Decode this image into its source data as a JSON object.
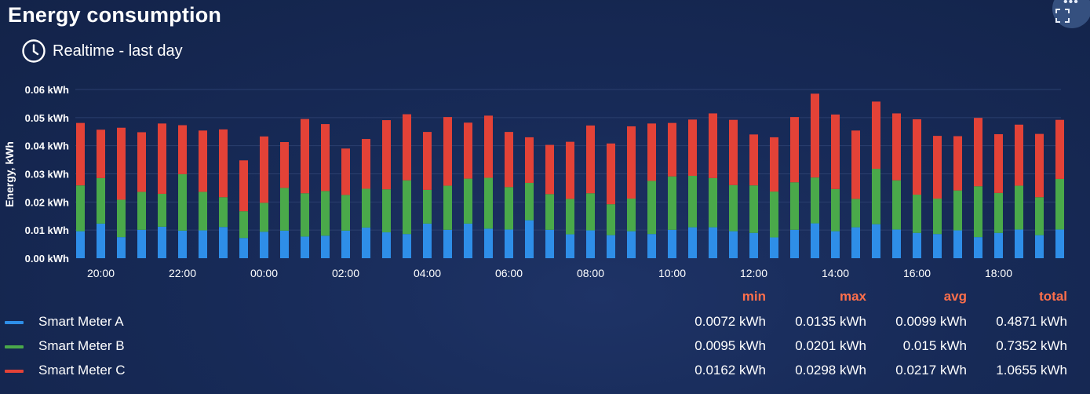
{
  "widget": {
    "title": "Energy consumption",
    "timewindow": "Realtime - last day",
    "menu_icon": "more-dots-icon",
    "fullscreen_icon": "fullscreen-icon",
    "clock_icon": "clock-icon"
  },
  "colors": {
    "A": "#2e8ee8",
    "B": "#4aa94a",
    "C": "#e34237",
    "accent": "#ff6f4b",
    "grid": "#2b3f6e"
  },
  "chart_data": {
    "type": "bar",
    "stacked": true,
    "ylabel": "Energy, kWh",
    "xlabel": "",
    "ylim": [
      0,
      0.06
    ],
    "y_ticks": [
      "0.00 kWh",
      "0.01 kWh",
      "0.02 kWh",
      "0.03 kWh",
      "0.04 kWh",
      "0.05 kWh",
      "0.06 kWh"
    ],
    "x_ticks": [
      {
        "label": "20:00",
        "index": 1
      },
      {
        "label": "22:00",
        "index": 5
      },
      {
        "label": "00:00",
        "index": 9
      },
      {
        "label": "02:00",
        "index": 13
      },
      {
        "label": "04:00",
        "index": 17
      },
      {
        "label": "06:00",
        "index": 21
      },
      {
        "label": "08:00",
        "index": 25
      },
      {
        "label": "10:00",
        "index": 29
      },
      {
        "label": "12:00",
        "index": 33
      },
      {
        "label": "14:00",
        "index": 37
      },
      {
        "label": "16:00",
        "index": 41
      },
      {
        "label": "18:00",
        "index": 45
      }
    ],
    "series": [
      {
        "name": "Smart Meter A",
        "values": [
          0.0096,
          0.0123,
          0.0075,
          0.0101,
          0.0112,
          0.0098,
          0.0099,
          0.0111,
          0.0072,
          0.0094,
          0.0098,
          0.0077,
          0.008,
          0.0098,
          0.0109,
          0.0092,
          0.0086,
          0.0123,
          0.0101,
          0.0123,
          0.0105,
          0.0102,
          0.0135,
          0.0101,
          0.0085,
          0.0099,
          0.0082,
          0.0096,
          0.0086,
          0.0101,
          0.011,
          0.011,
          0.0096,
          0.009,
          0.0074,
          0.0101,
          0.0124,
          0.0096,
          0.011,
          0.0121,
          0.0102,
          0.009,
          0.0086,
          0.0099,
          0.0075,
          0.009,
          0.0102,
          0.0082,
          0.0102
        ]
      },
      {
        "name": "Smart Meter B",
        "values": [
          0.0163,
          0.0162,
          0.0133,
          0.0135,
          0.0117,
          0.0201,
          0.0137,
          0.0106,
          0.0095,
          0.0103,
          0.0152,
          0.0154,
          0.0159,
          0.0127,
          0.0138,
          0.0153,
          0.0191,
          0.012,
          0.0157,
          0.016,
          0.0181,
          0.0151,
          0.0133,
          0.0127,
          0.0126,
          0.0132,
          0.011,
          0.0116,
          0.0189,
          0.019,
          0.0183,
          0.0175,
          0.0164,
          0.0169,
          0.0163,
          0.0169,
          0.0163,
          0.015,
          0.0101,
          0.0197,
          0.0175,
          0.0136,
          0.0126,
          0.0142,
          0.0181,
          0.0142,
          0.0156,
          0.0135,
          0.018
        ]
      },
      {
        "name": "Smart Meter C",
        "values": [
          0.0222,
          0.0172,
          0.0256,
          0.0212,
          0.025,
          0.0174,
          0.0218,
          0.0241,
          0.0181,
          0.0236,
          0.0163,
          0.0264,
          0.0238,
          0.0165,
          0.0177,
          0.0246,
          0.0235,
          0.0206,
          0.0244,
          0.0199,
          0.0221,
          0.0196,
          0.0162,
          0.0175,
          0.0203,
          0.0241,
          0.0216,
          0.0257,
          0.0204,
          0.019,
          0.02,
          0.023,
          0.0232,
          0.0181,
          0.0193,
          0.0232,
          0.0298,
          0.0265,
          0.0243,
          0.0239,
          0.0238,
          0.0268,
          0.0223,
          0.0193,
          0.0243,
          0.0209,
          0.0217,
          0.0225,
          0.021
        ]
      }
    ]
  },
  "legend": {
    "headers": {
      "min": "min",
      "max": "max",
      "avg": "avg",
      "total": "total"
    },
    "rows": [
      {
        "name": "Smart Meter A",
        "min": "0.0072 kWh",
        "max": "0.0135 kWh",
        "avg": "0.0099 kWh",
        "total": "0.4871 kWh"
      },
      {
        "name": "Smart Meter B",
        "min": "0.0095 kWh",
        "max": "0.0201 kWh",
        "avg": "0.015 kWh",
        "total": "0.7352 kWh"
      },
      {
        "name": "Smart Meter C",
        "min": "0.0162 kWh",
        "max": "0.0298 kWh",
        "avg": "0.0217 kWh",
        "total": "1.0655 kWh"
      }
    ]
  }
}
